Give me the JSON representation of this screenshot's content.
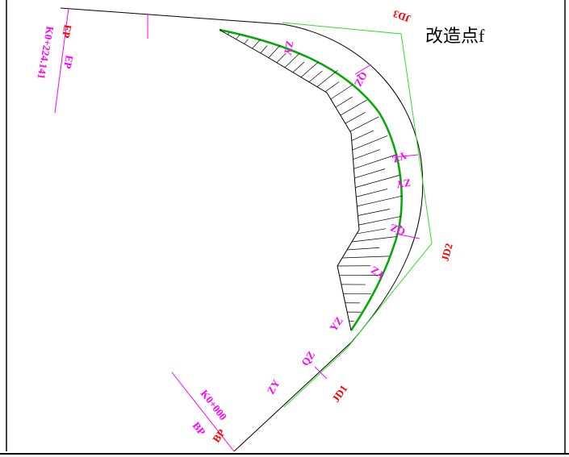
{
  "drawing": {
    "title": "改造点f",
    "jd_labels": [
      "JD3",
      "JD2",
      "JD1"
    ],
    "end_point": {
      "code": "EP",
      "station": "K0+224.141",
      "marker": "EP"
    },
    "start_point": {
      "code": "BP",
      "station": "K0+000",
      "marker": "BP"
    },
    "curve_labels": [
      "ZY",
      "QZ",
      "YZ",
      "ZY",
      "QZ",
      "YZ",
      "ZY",
      "QZ",
      "YZ"
    ]
  }
}
